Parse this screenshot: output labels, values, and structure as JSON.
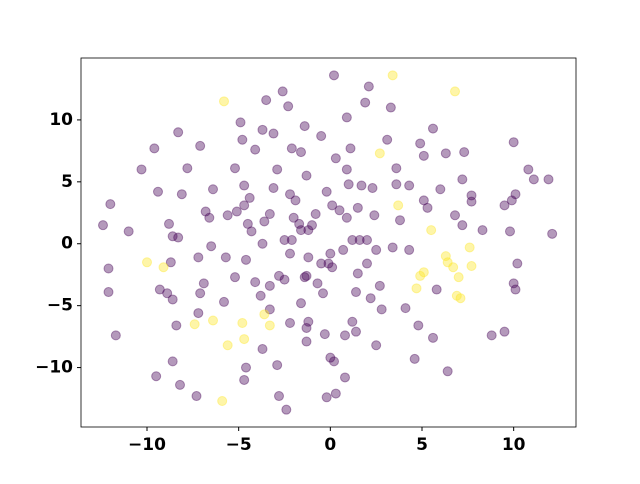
{
  "chart_data": {
    "type": "scatter",
    "xlim": [
      -13.6,
      13.4
    ],
    "ylim": [
      -14.8,
      15.0
    ],
    "xticks": [
      {
        "value": -10,
        "label": "−10"
      },
      {
        "value": -5,
        "label": "−5"
      },
      0,
      5,
      10
    ],
    "yticks": [
      {
        "value": -10,
        "label": "−10"
      },
      {
        "value": -5,
        "label": "−5"
      },
      0,
      5,
      10
    ],
    "series": [
      {
        "color": "#440154",
        "x": [
          -12.4,
          -12.0,
          -12.1,
          -12.1,
          -11.7,
          -11.0,
          -10.3,
          -9.6,
          -9.4,
          -8.8,
          -8.6,
          -8.3,
          -8.7,
          -9.3,
          -8.9,
          -8.6,
          -8.4,
          -8.6,
          -8.2,
          -9.5,
          -8.3,
          -7.8,
          -8.1,
          -7.1,
          -6.8,
          -6.6,
          -7.2,
          -6.9,
          -7.2,
          -7.3,
          -6.4,
          -6.5,
          -5.7,
          -5.8,
          -5.2,
          -4.7,
          -4.7,
          -4.9,
          -4.8,
          -4.4,
          -3.7,
          -3.6,
          -3.7,
          -3.5,
          -3.1,
          -2.9,
          -3.1,
          -3.3,
          -3.3,
          -4.3,
          -4.6,
          -4.7,
          -3.7,
          -2.9,
          -2.8,
          -2.4,
          -4.1,
          -3.8,
          -2.8,
          -2.6,
          -2.3,
          -2.1,
          -1.9,
          -2.0,
          -2.1,
          -2.5,
          -2.5,
          -2.2,
          -1.7,
          -1.6,
          -1.4,
          -1.3,
          -1.2,
          -1.3,
          -1.2,
          -1.3,
          -0.7,
          -0.5,
          -0.8,
          -1.0,
          -0.5,
          -0.4,
          -1.3,
          0.2,
          0.3,
          -0.1,
          -0.2,
          0.1,
          0.9,
          0.9,
          1.1,
          1.0,
          0.9,
          1.2,
          1.5,
          0.0,
          0.1,
          0.0,
          0.2,
          0.3,
          -0.2,
          0.8,
          1.6,
          1.5,
          1.4,
          1.2,
          1.4,
          0.8,
          2.1,
          1.9,
          2.0,
          2.2,
          2.3,
          2.4,
          2.5,
          2.0,
          2.8,
          3.1,
          3.3,
          3.6,
          3.6,
          3.8,
          2.7,
          2.5,
          3.4,
          4.3,
          4.1,
          4.6,
          4.8,
          4.9,
          5.1,
          5.1,
          5.3,
          5.6,
          5.6,
          6.3,
          6.0,
          5.8,
          6.4,
          7.3,
          7.2,
          7.7,
          7.7,
          6.8,
          7.2,
          8.3,
          9.8,
          9.5,
          9.9,
          10.0,
          10.1,
          10.8,
          11.1,
          11.9,
          12.1,
          10.2,
          10.0,
          10.1,
          9.5,
          8.8,
          4.3,
          -1.6,
          -4.1,
          -5.2,
          -5.6,
          -2.2,
          1.7,
          -1.4,
          -2.2,
          -0.3,
          -7.1,
          -5.1,
          -1.2,
          0.7,
          -4.5,
          -4.6,
          -3.3,
          -1.6,
          0.5
        ],
        "y": [
          1.5,
          3.2,
          -2.0,
          -3.9,
          -7.4,
          1.0,
          6.0,
          7.7,
          4.2,
          1.6,
          0.6,
          0.5,
          -1.5,
          -3.7,
          -4.0,
          -4.5,
          -6.6,
          -9.5,
          -11.4,
          -10.7,
          9.0,
          6.1,
          4.0,
          7.9,
          2.6,
          2.1,
          -1.1,
          -3.2,
          -5.6,
          -12.3,
          4.4,
          -0.2,
          -1.1,
          -4.7,
          6.1,
          4.7,
          3.1,
          9.8,
          8.4,
          3.7,
          0.0,
          1.8,
          9.2,
          11.6,
          8.9,
          6.0,
          4.5,
          2.4,
          -3.4,
          1.0,
          -10.0,
          -11.0,
          -8.5,
          -9.8,
          -12.3,
          -13.4,
          -3.1,
          -4.2,
          -2.6,
          12.3,
          11.1,
          7.7,
          3.5,
          2.1,
          0.3,
          -2.9,
          0.3,
          -0.8,
          1.6,
          7.4,
          9.5,
          5.5,
          -1.1,
          -2.6,
          -6.3,
          -6.8,
          -3.2,
          -1.6,
          2.4,
          1.5,
          8.7,
          -4.0,
          -7.9,
          13.6,
          6.9,
          -1.6,
          4.2,
          3.1,
          10.2,
          6.0,
          7.7,
          4.8,
          2.1,
          0.3,
          2.9,
          -0.8,
          -1.9,
          -9.2,
          -9.5,
          -12.1,
          -12.4,
          -10.8,
          0.3,
          -2.4,
          -3.9,
          -6.3,
          -7.1,
          -7.4,
          12.7,
          11.4,
          -1.6,
          -4.4,
          4.5,
          2.3,
          -0.5,
          0.3,
          -5.3,
          8.4,
          11.0,
          6.1,
          4.8,
          1.9,
          -3.4,
          -8.2,
          -0.3,
          -0.5,
          -5.2,
          -9.3,
          -6.6,
          8.1,
          7.1,
          3.5,
          2.9,
          -7.6,
          9.3,
          7.3,
          4.4,
          -3.7,
          -10.3,
          7.4,
          5.2,
          3.9,
          3.4,
          2.3,
          1.5,
          1.1,
          1.0,
          3.1,
          3.5,
          8.2,
          4.0,
          6.0,
          5.2,
          5.2,
          0.8,
          -1.6,
          -3.2,
          -3.7,
          -7.1,
          -7.4,
          4.7,
          1.1,
          7.6,
          -2.7,
          2.3,
          4.0,
          4.7,
          -2.7,
          -6.4,
          -7.3,
          -4.0,
          2.6,
          1.1,
          -0.5,
          1.6,
          -1.3,
          -5.3,
          -4.8,
          2.7
        ]
      },
      {
        "color": "#fde725",
        "x": [
          -5.8,
          3.4,
          6.8,
          2.7,
          3.7,
          5.5,
          6.3,
          6.4,
          6.7,
          7.6,
          7.7,
          7.0,
          7.1,
          6.9,
          4.9,
          5.1,
          4.7,
          -10.0,
          -9.1,
          -7.4,
          -6.4,
          -5.6,
          -4.7,
          -3.6,
          -3.3,
          -5.9,
          -4.8
        ],
        "y": [
          11.5,
          13.6,
          12.3,
          7.3,
          3.1,
          1.1,
          -1.0,
          -1.5,
          -1.9,
          -0.3,
          -1.8,
          -2.7,
          -4.4,
          -4.2,
          -2.6,
          -2.3,
          -3.6,
          -1.5,
          -1.9,
          -6.5,
          -6.2,
          -8.2,
          -7.7,
          -5.7,
          -6.6,
          -12.7,
          -6.4
        ]
      }
    ]
  }
}
